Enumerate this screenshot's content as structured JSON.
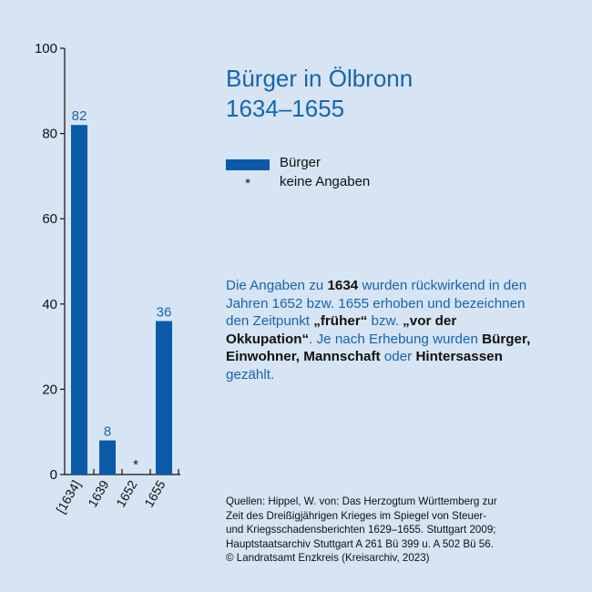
{
  "chart_data": {
    "type": "bar",
    "title_line1": "Bürger in Ölbronn",
    "title_line2": "1634–1655",
    "categories": [
      "[1634]",
      "1639",
      "1652",
      "1655"
    ],
    "values": [
      82,
      8,
      null,
      36
    ],
    "data_labels": [
      "82",
      "8",
      "*",
      "36"
    ],
    "yticks": [
      "0",
      "20",
      "40",
      "60",
      "80",
      "100"
    ],
    "ylim": [
      0,
      100
    ],
    "series": [
      {
        "name": "Bürger",
        "values": [
          82,
          8,
          null,
          36
        ]
      }
    ],
    "legend": [
      {
        "marker": "bar",
        "label": "Bürger"
      },
      {
        "marker": "*",
        "label": "keine Angaben"
      }
    ],
    "bar_color": "#0a5aa8",
    "label_color": "#1565b0"
  },
  "note": {
    "p1": "Die Angaben zu ",
    "b1": "1634",
    "p2": " wurden rückwirkend in den Jahren 1652 bzw. 1655 erhoben und bezeichnen den Zeitpunkt ",
    "b2": "„früher“",
    "p3": " bzw. ",
    "b3": "„vor der Okkupation“",
    "p4": ". Je nach Erhebung wurden ",
    "b4": "Bürger, Einwohner, Mannschaft",
    "p5": " oder ",
    "b5": "Hintersassen",
    "p6": " gezählt."
  },
  "sources": {
    "line1": "Quellen: Hippel, W. von: Das Herzogtum Württemberg zur",
    "line2": "Zeit des Dreißigjährigen Krieges im Spiegel von Steuer-",
    "line3": "und Kriegsschadensberichten 1629–1655. Stuttgart 2009;",
    "line4": "Hauptstaatsarchiv Stuttgart A 261 Bü 399 u. A 502 Bü 56.",
    "line5": "© Landratsamt Enzkreis (Kreisarchiv, 2023)"
  }
}
